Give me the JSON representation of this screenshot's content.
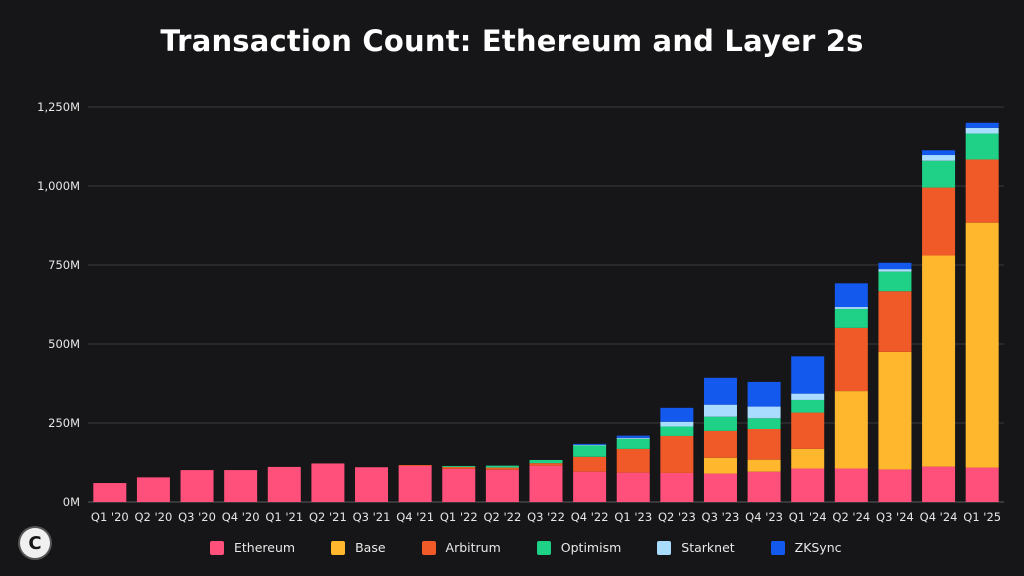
{
  "chart_data": {
    "type": "bar",
    "stacked": true,
    "title": "Transaction Count: Ethereum and Layer 2s",
    "xlabel": "",
    "ylabel": "",
    "ylim": [
      0,
      1250
    ],
    "yticks": [
      0,
      250,
      500,
      750,
      1000,
      1250
    ],
    "ytick_labels": [
      "0M",
      "250M",
      "500M",
      "750M",
      "1,000M",
      "1,250M"
    ],
    "categories": [
      "Q1 '20",
      "Q2 '20",
      "Q3 '20",
      "Q4 '20",
      "Q1 '21",
      "Q2 '21",
      "Q3 '21",
      "Q4 '21",
      "Q1 '22",
      "Q2 '22",
      "Q3 '22",
      "Q4 '22",
      "Q1 '23",
      "Q2 '23",
      "Q3 '23",
      "Q4 '23",
      "Q1 '24",
      "Q2 '24",
      "Q3 '24",
      "Q4 '24",
      "Q1 '25"
    ],
    "series": [
      {
        "name": "Ethereum",
        "color": "#ff4f7b",
        "values": [
          60,
          78,
          101,
          101,
          111,
          122,
          110,
          114,
          105,
          102,
          115,
          96,
          93,
          92,
          90,
          96,
          106,
          106,
          103,
          112,
          109
        ]
      },
      {
        "name": "Base",
        "color": "#ffb72e",
        "values": [
          0,
          0,
          0,
          0,
          0,
          0,
          0,
          0,
          0,
          0,
          0,
          0,
          0,
          0,
          50,
          38,
          62,
          245,
          372,
          668,
          775
        ]
      },
      {
        "name": "Arbitrum",
        "color": "#f05a28",
        "values": [
          0,
          0,
          0,
          0,
          0,
          0,
          0,
          3,
          6,
          7,
          8,
          47,
          75,
          117,
          85,
          97,
          115,
          200,
          192,
          215,
          200
        ]
      },
      {
        "name": "Optimism",
        "color": "#1fd186",
        "values": [
          0,
          0,
          0,
          0,
          0,
          0,
          0,
          0,
          3,
          6,
          10,
          36,
          32,
          30,
          45,
          34,
          40,
          60,
          62,
          85,
          82
        ]
      },
      {
        "name": "Starknet",
        "color": "#a9dcff",
        "values": [
          0,
          0,
          0,
          0,
          0,
          0,
          0,
          0,
          0,
          0,
          0,
          2,
          3,
          15,
          38,
          37,
          20,
          6,
          8,
          18,
          18
        ]
      },
      {
        "name": "ZKSync",
        "color": "#1459ee",
        "values": [
          0,
          0,
          0,
          0,
          0,
          0,
          0,
          0,
          0,
          0,
          0,
          3,
          7,
          44,
          85,
          78,
          118,
          75,
          20,
          15,
          16
        ]
      }
    ]
  },
  "logo_text": "C"
}
